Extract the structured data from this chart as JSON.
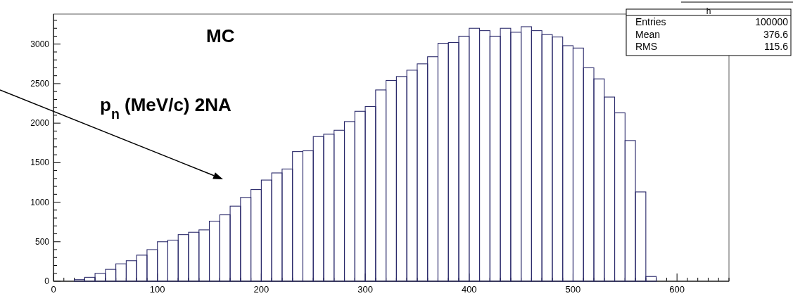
{
  "chart_data": {
    "type": "histogram",
    "color": "#2b2a6b",
    "bins": [
      20,
      30,
      40,
      50,
      60,
      70,
      80,
      90,
      100,
      110,
      120,
      130,
      140,
      150,
      160,
      170,
      180,
      190,
      200,
      210,
      220,
      230,
      240,
      250,
      260,
      270,
      280,
      290,
      300,
      310,
      320,
      330,
      340,
      350,
      360,
      370,
      380,
      390,
      400,
      410,
      420,
      430,
      440,
      450,
      460,
      470,
      480,
      490,
      500,
      510,
      520,
      530,
      540,
      550,
      560,
      570,
      580
    ],
    "values": [
      20,
      50,
      100,
      150,
      220,
      260,
      330,
      400,
      500,
      520,
      590,
      620,
      650,
      760,
      840,
      950,
      1060,
      1160,
      1280,
      1370,
      1420,
      1640,
      1650,
      1830,
      1860,
      1910,
      2020,
      2150,
      2210,
      2420,
      2540,
      2590,
      2670,
      2750,
      2840,
      3010,
      3020,
      3100,
      3200,
      3170,
      3100,
      3200,
      3150,
      3220,
      3170,
      3120,
      3090,
      2980,
      2950,
      2700,
      2560,
      2330,
      2130,
      1780,
      1130,
      60
    ],
    "xlim": [
      0,
      650
    ],
    "ylim": [
      0,
      3380
    ],
    "xticks": [
      0,
      100,
      200,
      300,
      400,
      500,
      600,
      {
        "value": 10,
        "label": null
      },
      {
        "value": 20,
        "label": null
      },
      {
        "value": 30,
        "label": null
      },
      {
        "value": 40,
        "label": null
      },
      {
        "value": 50,
        "label": null
      },
      {
        "value": 60,
        "label": null
      },
      {
        "value": 70,
        "label": null
      },
      {
        "value": 80,
        "label": null
      },
      {
        "value": 90,
        "label": null
      },
      {
        "value": 110,
        "label": null
      },
      {
        "value": 120,
        "label": null
      },
      {
        "value": 130,
        "label": null
      },
      {
        "value": 140,
        "label": null
      },
      {
        "value": 150,
        "label": null
      },
      {
        "value": 160,
        "label": null
      },
      {
        "value": 170,
        "label": null
      },
      {
        "value": 180,
        "label": null
      },
      {
        "value": 190,
        "label": null
      },
      {
        "value": 210,
        "label": null
      },
      {
        "value": 220,
        "label": null
      },
      {
        "value": 230,
        "label": null
      },
      {
        "value": 240,
        "label": null
      },
      {
        "value": 250,
        "label": null
      },
      {
        "value": 260,
        "label": null
      },
      {
        "value": 270,
        "label": null
      },
      {
        "value": 280,
        "label": null
      },
      {
        "value": 290,
        "label": null
      },
      {
        "value": 310,
        "label": null
      },
      {
        "value": 320,
        "label": null
      },
      {
        "value": 330,
        "label": null
      },
      {
        "value": 340,
        "label": null
      },
      {
        "value": 350,
        "label": null
      },
      {
        "value": 360,
        "label": null
      },
      {
        "value": 370,
        "label": null
      },
      {
        "value": 380,
        "label": null
      },
      {
        "value": 390,
        "label": null
      },
      {
        "value": 410,
        "label": null
      },
      {
        "value": 420,
        "label": null
      },
      {
        "value": 430,
        "label": null
      },
      {
        "value": 440,
        "label": null
      },
      {
        "value": 450,
        "label": null
      },
      {
        "value": 460,
        "label": null
      },
      {
        "value": 470,
        "label": null
      },
      {
        "value": 480,
        "label": null
      },
      {
        "value": 490,
        "label": null
      },
      {
        "value": 510,
        "label": null
      },
      {
        "value": 520,
        "label": null
      },
      {
        "value": 530,
        "label": null
      },
      {
        "value": 540,
        "label": null
      },
      {
        "value": 550,
        "label": null
      },
      {
        "value": 560,
        "label": null
      },
      {
        "value": 570,
        "label": null
      },
      {
        "value": 580,
        "label": null
      },
      {
        "value": 590,
        "label": null
      },
      {
        "value": 610,
        "label": null
      },
      {
        "value": 620,
        "label": null
      },
      {
        "value": 630,
        "label": null
      },
      {
        "value": 640,
        "label": null
      },
      {
        "value": 650,
        "label": null
      }
    ],
    "yticks": [
      0,
      500,
      1000,
      1500,
      2000,
      2500,
      3000,
      {
        "value": 100,
        "label": null
      },
      {
        "value": 200,
        "label": null
      },
      {
        "value": 300,
        "label": null
      },
      {
        "value": 400,
        "label": null
      },
      {
        "value": 600,
        "label": null
      },
      {
        "value": 700,
        "label": null
      },
      {
        "value": 800,
        "label": null
      },
      {
        "value": 900,
        "label": null
      },
      {
        "value": 1100,
        "label": null
      },
      {
        "value": 1200,
        "label": null
      },
      {
        "value": 1300,
        "label": null
      },
      {
        "value": 1400,
        "label": null
      },
      {
        "value": 1600,
        "label": null
      },
      {
        "value": 1700,
        "label": null
      },
      {
        "value": 1800,
        "label": null
      },
      {
        "value": 1900,
        "label": null
      },
      {
        "value": 2100,
        "label": null
      },
      {
        "value": 2200,
        "label": null
      },
      {
        "value": 2300,
        "label": null
      },
      {
        "value": 2400,
        "label": null
      },
      {
        "value": 2600,
        "label": null
      },
      {
        "value": 2700,
        "label": null
      },
      {
        "value": 2800,
        "label": null
      },
      {
        "value": 2900,
        "label": null
      },
      {
        "value": 3100,
        "label": null
      },
      {
        "value": 3200,
        "label": null
      },
      {
        "value": 3300,
        "label": null
      }
    ],
    "annotations": [
      "MC",
      "p$_{n}$  (MeV/c) 2NA",
      "h",
      "Entries 100000",
      "Mean 376.6",
      "RMS 115.6"
    ]
  }
}
